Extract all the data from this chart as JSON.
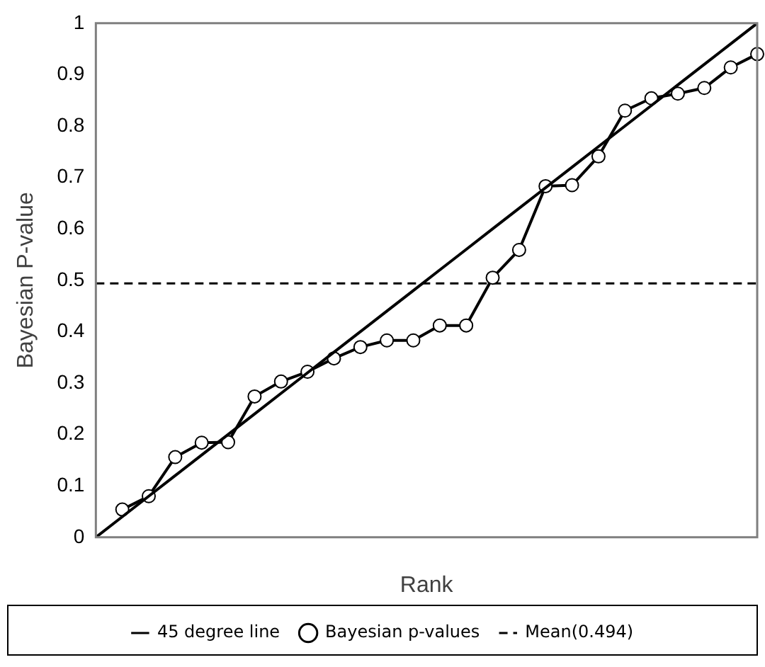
{
  "chart_data": {
    "type": "line",
    "xlabel": "Rank",
    "ylabel": "Bayesian P-value",
    "categories": [
      null,
      null,
      null,
      null,
      null,
      null,
      null,
      null,
      null,
      null,
      null,
      null,
      null,
      null,
      null,
      null,
      null,
      null,
      null,
      null,
      null,
      null,
      null,
      null,
      null,
      null
    ],
    "ylim": [
      0,
      1
    ],
    "yticks": [
      0,
      0.1,
      0.2,
      0.3,
      0.4,
      0.5,
      0.6,
      0.7,
      0.8,
      0.9,
      1
    ],
    "grid": false,
    "legend": "bottom",
    "series": [
      {
        "name": "45 degree line",
        "color": "#000000",
        "values": [
          0,
          0.04,
          0.08,
          0.12,
          0.16,
          0.2,
          0.24,
          0.28,
          0.32,
          0.36,
          0.4,
          0.44,
          0.48,
          0.52,
          0.56,
          0.6,
          0.64,
          0.68,
          0.72,
          0.76,
          0.8,
          0.84,
          0.88,
          0.92,
          0.96,
          1
        ],
        "marker": "none",
        "line_style": "solid"
      },
      {
        "name": "Bayesian p-values",
        "color": "#000000",
        "values": [
          null,
          0.054,
          0.08,
          0.156,
          0.184,
          0.185,
          0.274,
          0.303,
          0.322,
          0.348,
          0.37,
          0.383,
          0.383,
          0.412,
          0.412,
          0.505,
          0.559,
          0.683,
          0.685,
          0.741,
          0.83,
          0.854,
          0.863,
          0.874,
          0.914,
          0.94
        ],
        "marker": "circle",
        "line_style": "solid"
      }
    ],
    "ref_lines": [
      {
        "axis": "y",
        "value": 0.494,
        "label": "Mean(0.494)",
        "color": "#000000",
        "line_style": "dashed"
      }
    ]
  }
}
